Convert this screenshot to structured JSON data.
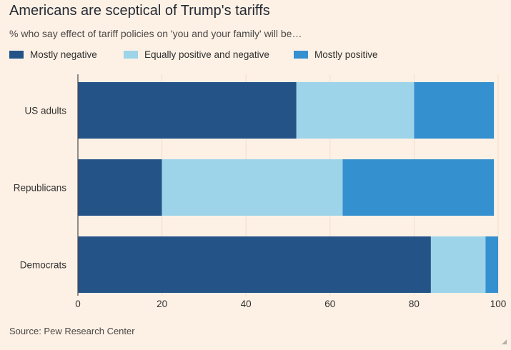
{
  "title": "Americans are sceptical of Trump's tariffs",
  "subtitle": "% who say effect of tariff policies on 'you and your family' will be…",
  "source": "Source: Pew Research Center",
  "corner_mark": "◢",
  "legend": [
    {
      "label": "Mostly negative",
      "color": "#245388"
    },
    {
      "label": "Equally positive and negative",
      "color": "#9dd4e9"
    },
    {
      "label": "Mostly positive",
      "color": "#3590cf"
    }
  ],
  "chart_data": {
    "type": "bar",
    "orientation": "horizontal",
    "stacked": true,
    "title": "Americans are sceptical of Trump's tariffs",
    "subtitle": "% who say effect of tariff policies on 'you and your family' will be…",
    "categories": [
      "US adults",
      "Republicans",
      "Democrats"
    ],
    "series": [
      {
        "name": "Mostly negative",
        "color": "#245388",
        "values": [
          52,
          20,
          84
        ]
      },
      {
        "name": "Equally positive and negative",
        "color": "#9dd4e9",
        "values": [
          28,
          43,
          13
        ]
      },
      {
        "name": "Mostly positive",
        "color": "#3590cf",
        "values": [
          19,
          36,
          3
        ]
      }
    ],
    "xlim": [
      0,
      100
    ],
    "xticks": [
      0,
      20,
      40,
      60,
      80,
      100
    ],
    "xlabel": "",
    "ylabel": "",
    "grid": true,
    "legend_position": "top-left"
  }
}
